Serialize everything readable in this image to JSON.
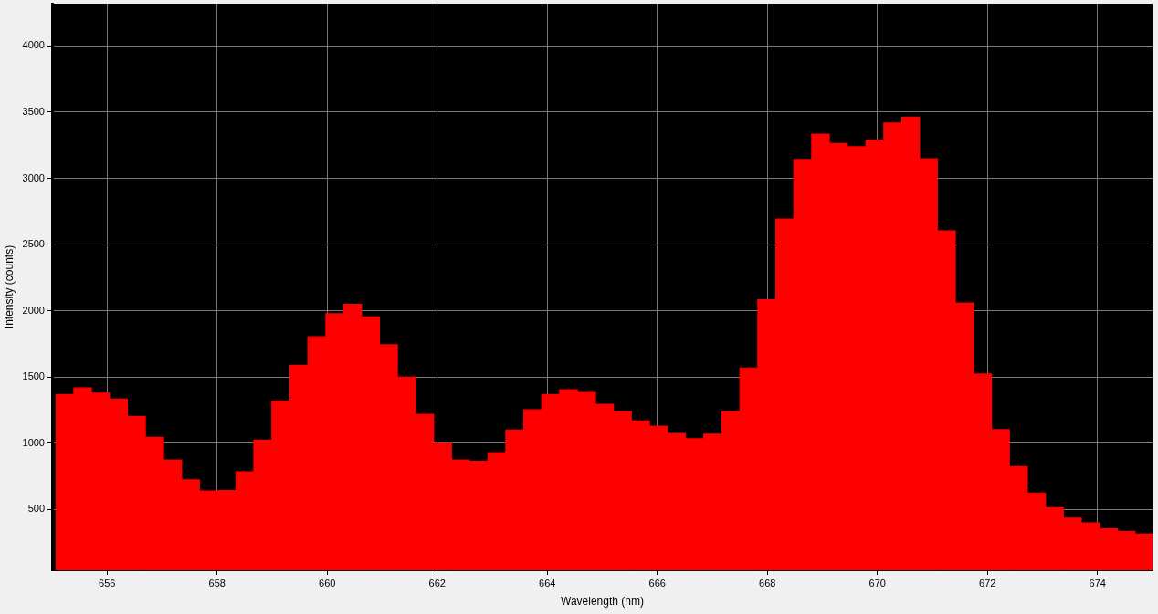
{
  "chart_data": {
    "type": "histogram",
    "xlabel": "Wavelength (nm)",
    "ylabel": "Intensity (counts)",
    "bins": [
      655.07,
      655.39,
      655.72,
      656.05,
      656.37,
      656.7,
      657.03,
      657.36,
      657.68,
      658.01,
      658.34,
      658.66,
      658.99,
      659.32,
      659.65,
      659.97,
      660.3,
      660.63,
      660.95,
      661.28,
      661.61,
      661.94,
      662.26,
      662.59,
      662.92,
      663.24,
      663.57,
      663.9,
      664.22,
      664.55,
      664.88,
      665.21,
      665.53,
      665.86,
      666.19,
      666.51,
      666.84,
      667.17,
      667.5,
      667.82,
      668.15,
      668.48,
      668.8,
      669.13,
      669.46,
      669.79,
      670.11,
      670.44,
      670.77,
      671.09,
      671.42,
      671.75,
      672.08,
      672.4,
      672.73,
      673.06,
      673.38,
      673.71,
      674.04,
      674.37,
      674.69,
      675
    ],
    "values": [
      1370,
      1420,
      1380,
      1335,
      1205,
      1045,
      875,
      725,
      640,
      645,
      785,
      1025,
      1320,
      1590,
      1805,
      1980,
      2050,
      1955,
      1745,
      1500,
      1220,
      1000,
      875,
      865,
      930,
      1100,
      1255,
      1370,
      1405,
      1385,
      1295,
      1240,
      1170,
      1130,
      1075,
      1035,
      1070,
      1240,
      1570,
      2085,
      2695,
      3145,
      3335,
      3265,
      3240,
      3290,
      3420,
      3465,
      3150,
      2605,
      2060,
      1525,
      1105,
      825,
      625,
      515,
      435,
      400,
      355,
      335,
      315
    ],
    "color": "#ff0000",
    "xlim": [
      655,
      675
    ],
    "ylim": [
      40,
      4320
    ],
    "xticks": [
      656,
      658,
      660,
      662,
      664,
      666,
      668,
      670,
      672,
      674
    ],
    "yticks": [
      500,
      1000,
      1500,
      2000,
      2500,
      3000,
      3500,
      4000
    ],
    "grid": true
  }
}
